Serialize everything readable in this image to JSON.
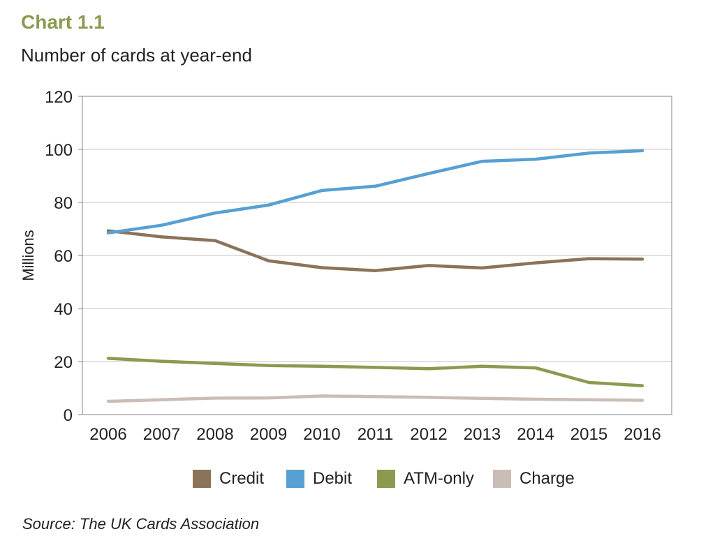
{
  "header": {
    "chart_number": "Chart 1.1",
    "subtitle": "Number of cards at year-end"
  },
  "source": "Source: The UK Cards Association",
  "chart_data": {
    "type": "line",
    "title": "Number of cards at year-end",
    "xlabel": "",
    "ylabel": "Millions",
    "ylim": [
      0,
      120
    ],
    "yticks": [
      0,
      20,
      40,
      60,
      80,
      100,
      120
    ],
    "grid": true,
    "legend_position": "bottom",
    "categories": [
      "2006",
      "2007",
      "2008",
      "2009",
      "2010",
      "2011",
      "2012",
      "2013",
      "2014",
      "2015",
      "2016"
    ],
    "series": [
      {
        "name": "Credit",
        "color": "#8b7359",
        "values": [
          69.3,
          67.0,
          65.6,
          58.0,
          55.4,
          54.3,
          56.2,
          55.3,
          57.2,
          58.8,
          58.6
        ]
      },
      {
        "name": "Debit",
        "color": "#56a0d3",
        "values": [
          68.5,
          71.4,
          76.0,
          79.0,
          84.5,
          86.1,
          90.9,
          95.5,
          96.3,
          98.6,
          99.5
        ]
      },
      {
        "name": "ATM-only",
        "color": "#8a9a4f",
        "values": [
          21.2,
          20.1,
          19.3,
          18.5,
          18.2,
          17.8,
          17.3,
          18.2,
          17.6,
          12.1,
          10.9
        ]
      },
      {
        "name": "Charge",
        "color": "#c9bdb6",
        "values": [
          5.0,
          5.6,
          6.2,
          6.3,
          7.0,
          6.8,
          6.5,
          6.1,
          5.8,
          5.6,
          5.4
        ]
      }
    ]
  }
}
